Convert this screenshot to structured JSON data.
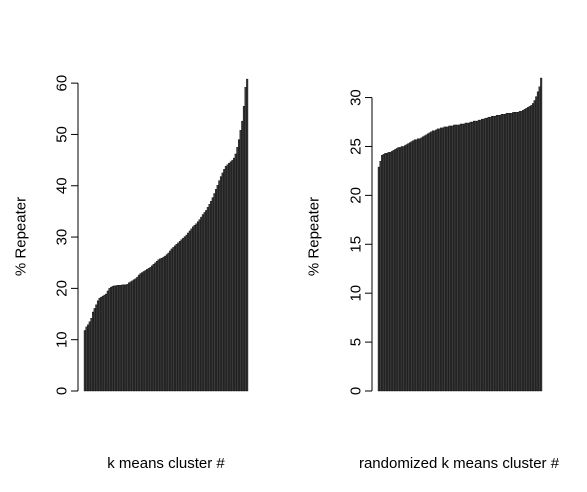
{
  "chart_data": [
    {
      "type": "bar",
      "title": "",
      "xlabel": "k means cluster #",
      "ylabel": "% Repeater",
      "ylim": [
        0,
        61
      ],
      "yticks": [
        0,
        10,
        20,
        30,
        40,
        50,
        60
      ],
      "grid": false,
      "bar_color": "#3a3a3a",
      "bar_edge": "#000000",
      "n_bars": 100,
      "values": [
        11.8,
        12.5,
        12.9,
        13.5,
        14.2,
        15.4,
        16.1,
        16.8,
        17.6,
        18.1,
        18.3,
        18.5,
        18.7,
        18.9,
        19.5,
        20.0,
        20.2,
        20.4,
        20.5,
        20.5,
        20.6,
        20.6,
        20.6,
        20.7,
        20.7,
        20.7,
        20.8,
        21.1,
        21.3,
        21.5,
        21.7,
        21.9,
        22.2,
        22.6,
        22.9,
        23.1,
        23.3,
        23.5,
        23.7,
        23.9,
        24.1,
        24.4,
        24.7,
        25.0,
        25.3,
        25.6,
        25.8,
        25.9,
        26.1,
        26.3,
        26.6,
        26.9,
        27.3,
        27.7,
        28.0,
        28.3,
        28.6,
        28.9,
        29.2,
        29.5,
        29.8,
        30.1,
        30.4,
        30.8,
        31.2,
        31.6,
        32.0,
        32.3,
        32.6,
        33.0,
        33.4,
        33.9,
        34.4,
        34.8,
        35.2,
        35.8,
        36.4,
        37.0,
        37.7,
        38.5,
        39.3,
        40.1,
        41.0,
        41.8,
        42.5,
        43.2,
        43.8,
        44.1,
        44.4,
        44.7,
        45.0,
        45.4,
        46.2,
        47.5,
        49.0,
        50.8,
        52.6,
        55.5,
        59.2,
        60.8
      ]
    },
    {
      "type": "bar",
      "title": "",
      "xlabel": "randomized k means cluster #",
      "ylabel": "% Repeater",
      "ylim": [
        0,
        32
      ],
      "yticks": [
        0,
        5,
        10,
        15,
        20,
        25,
        30
      ],
      "grid": false,
      "bar_color": "#3a3a3a",
      "bar_edge": "#000000",
      "n_bars": 100,
      "values": [
        22.9,
        23.5,
        24.1,
        24.2,
        24.3,
        24.3,
        24.4,
        24.4,
        24.5,
        24.6,
        24.7,
        24.8,
        24.9,
        24.9,
        25.0,
        25.0,
        25.1,
        25.2,
        25.3,
        25.4,
        25.5,
        25.6,
        25.7,
        25.7,
        25.8,
        25.8,
        25.9,
        26.0,
        26.1,
        26.2,
        26.3,
        26.4,
        26.5,
        26.6,
        26.6,
        26.7,
        26.8,
        26.8,
        26.9,
        26.9,
        27.0,
        27.0,
        27.0,
        27.1,
        27.1,
        27.1,
        27.2,
        27.2,
        27.2,
        27.2,
        27.3,
        27.3,
        27.3,
        27.4,
        27.4,
        27.4,
        27.5,
        27.5,
        27.6,
        27.6,
        27.6,
        27.7,
        27.7,
        27.8,
        27.8,
        27.9,
        27.9,
        28.0,
        28.0,
        28.1,
        28.1,
        28.1,
        28.2,
        28.2,
        28.2,
        28.3,
        28.3,
        28.3,
        28.4,
        28.4,
        28.4,
        28.4,
        28.5,
        28.5,
        28.5,
        28.5,
        28.6,
        28.6,
        28.7,
        28.8,
        28.9,
        29.0,
        29.1,
        29.2,
        29.4,
        29.7,
        30.1,
        30.6,
        31.1,
        32.0
      ]
    }
  ]
}
